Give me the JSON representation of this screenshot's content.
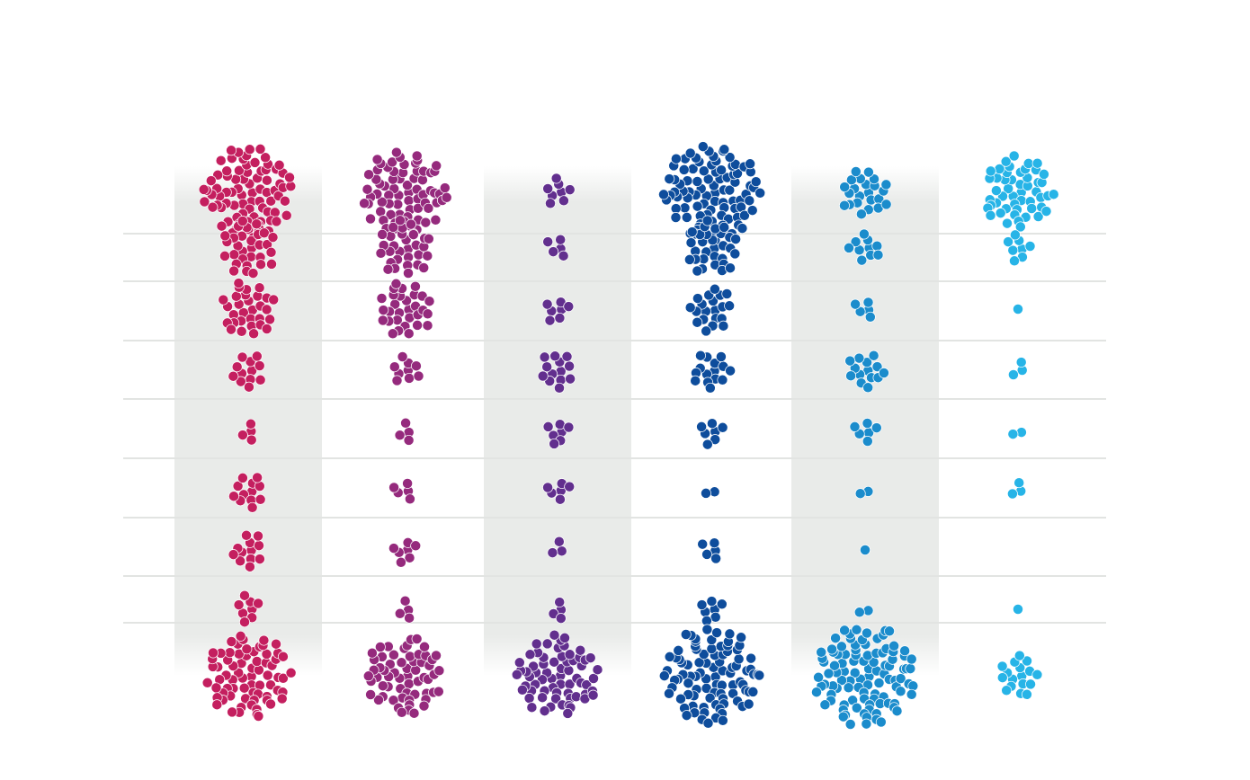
{
  "chart_data": {
    "type": "scatter",
    "title": "",
    "xlabel": "",
    "ylabel": "",
    "grid": true,
    "legend": "none",
    "columns": [
      {
        "color": "#c41f5f",
        "shaded": true,
        "counts": [
          80,
          30,
          30,
          12,
          4,
          12,
          12,
          8,
          70
        ]
      },
      {
        "color": "#952a7d",
        "shaded": false,
        "counts": [
          70,
          30,
          30,
          9,
          4,
          5,
          7,
          4,
          60
        ]
      },
      {
        "color": "#622f8e",
        "shaded": true,
        "counts": [
          8,
          5,
          7,
          13,
          7,
          6,
          3,
          4,
          65
        ]
      },
      {
        "color": "#0e4d9c",
        "shaded": false,
        "counts": [
          90,
          30,
          20,
          15,
          7,
          2,
          5,
          7,
          90
        ]
      },
      {
        "color": "#1b8ccc",
        "shaded": true,
        "counts": [
          23,
          10,
          5,
          14,
          6,
          2,
          1,
          2,
          100
        ]
      },
      {
        "color": "#27b4e7",
        "shaded": false,
        "counts": [
          50,
          8,
          1,
          3,
          2,
          3,
          0,
          1,
          17
        ]
      }
    ]
  }
}
